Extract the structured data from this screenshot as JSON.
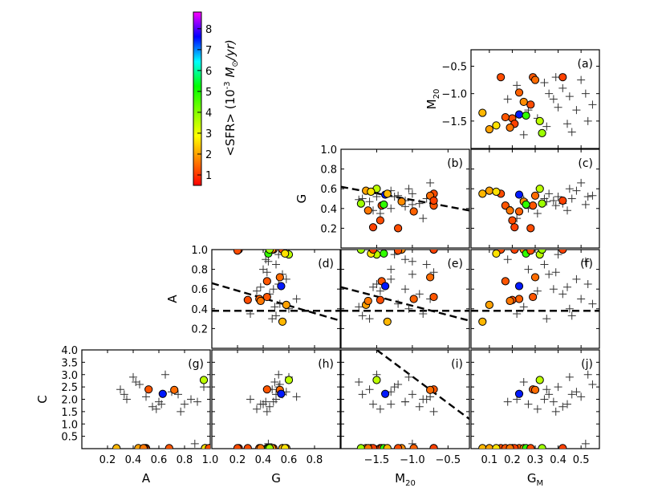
{
  "chart_data": {
    "type": "scatter",
    "title": "",
    "colorbar": {
      "label": "<SFR> (10^-3 M_sun/yr)",
      "label_main": "<SFR> (10",
      "label_exp": "-3",
      "label_unit": " M",
      "label_sub": "⊙",
      "label_tail": "/yr)",
      "range": [
        0.5,
        8.8
      ],
      "ticks": [
        "1",
        "2",
        "3",
        "4",
        "5",
        "6",
        "7",
        "8"
      ],
      "colors": [
        "#ff0000",
        "#ff8000",
        "#ffff00",
        "#80ff00",
        "#00ff00",
        "#00ffff",
        "#0000ff",
        "#ff00ff"
      ]
    },
    "variables": {
      "A": {
        "label": "A",
        "sub": "",
        "range": [
          0,
          1.0
        ],
        "ticks": [
          "0.2",
          "0.4",
          "0.6",
          "0.8",
          "1.0"
        ]
      },
      "G": {
        "label": "G",
        "sub": "",
        "range": [
          0,
          1.0
        ],
        "ticks": [
          "0.2",
          "0.4",
          "0.6",
          "0.8",
          "1.0"
        ]
      },
      "M20": {
        "label": "M",
        "sub": "20",
        "range": [
          -2.0,
          -0.2
        ],
        "ticks": [
          "−1.5",
          "−1.0",
          "−0.5"
        ]
      },
      "GM": {
        "label": "G",
        "sub": "M",
        "range": [
          0.02,
          0.58
        ],
        "ticks": [
          "0.1",
          "0.2",
          "0.3",
          "0.4",
          "0.5"
        ]
      },
      "C": {
        "label": "C",
        "sub": "",
        "range": [
          0,
          4.0
        ],
        "ticks": [
          "0.5",
          "1.0",
          "1.5",
          "2.0",
          "2.5",
          "3.0",
          "3.5",
          "4.0"
        ]
      }
    },
    "panels": [
      {
        "id": "a",
        "label": "(a)",
        "x": "GM",
        "y": "M20",
        "row": 0,
        "col": 3,
        "yticks": [
          "−1.5",
          "−1.0",
          "−0.5"
        ],
        "ylabel": "M20",
        "lines": []
      },
      {
        "id": "b",
        "label": "(b)",
        "x": "M20",
        "y": "G",
        "row": 1,
        "col": 2,
        "yticks": [
          "0.2",
          "0.4",
          "0.6",
          "0.8",
          "1.0"
        ],
        "ylabel": "G",
        "lines": [
          [
            [
              -2.0,
              0.62
            ],
            [
              -0.2,
              0.38
            ]
          ]
        ]
      },
      {
        "id": "c",
        "label": "(c)",
        "x": "GM",
        "y": "G",
        "row": 1,
        "col": 3,
        "lines": []
      },
      {
        "id": "d",
        "label": "(d)",
        "x": "G",
        "y": "A",
        "row": 2,
        "col": 1,
        "yticks": [
          "0.2",
          "0.4",
          "0.6",
          "0.8",
          "1.0"
        ],
        "ylabel": "A",
        "lines": [
          [
            [
              0,
              0.38
            ],
            [
              1.0,
              0.38
            ]
          ],
          [
            [
              0,
              0.66
            ],
            [
              1.0,
              0.28
            ]
          ]
        ]
      },
      {
        "id": "e",
        "label": "(e)",
        "x": "M20",
        "y": "A",
        "row": 2,
        "col": 2,
        "lines": [
          [
            [
              -2.0,
              0.38
            ],
            [
              -0.2,
              0.38
            ]
          ],
          [
            [
              -2.0,
              0.62
            ],
            [
              -0.2,
              0.28
            ]
          ]
        ]
      },
      {
        "id": "f",
        "label": "(f)",
        "x": "GM",
        "y": "A",
        "row": 2,
        "col": 3,
        "lines": [
          [
            [
              0.02,
              0.38
            ],
            [
              0.58,
              0.38
            ]
          ]
        ]
      },
      {
        "id": "g",
        "label": "(g)",
        "x": "A",
        "y": "C",
        "row": 3,
        "col": 0,
        "yticks": [
          "0.5",
          "1.0",
          "1.5",
          "2.0",
          "2.5",
          "3.0",
          "3.5",
          "4.0"
        ],
        "ylabel": "C",
        "xticks": [
          "0.2",
          "0.4",
          "0.6",
          "0.8",
          "1.0"
        ],
        "xlabel": "A",
        "lines": []
      },
      {
        "id": "h",
        "label": "(h)",
        "x": "G",
        "y": "C",
        "row": 3,
        "col": 1,
        "xticks": [
          "0.2",
          "0.4",
          "0.6",
          "0.8"
        ],
        "xlabel": "G",
        "lines": []
      },
      {
        "id": "i",
        "label": "(i)",
        "x": "M20",
        "y": "C",
        "row": 3,
        "col": 2,
        "xticks": [
          "−1.5",
          "−1.0",
          "−0.5"
        ],
        "xlabel": "M20",
        "lines": [
          [
            [
              -1.5,
              4.0
            ],
            [
              -0.2,
              1.2
            ]
          ]
        ]
      },
      {
        "id": "j",
        "label": "(j)",
        "x": "GM",
        "y": "C",
        "row": 3,
        "col": 3,
        "xticks": [
          "0.1",
          "0.2",
          "0.3",
          "0.4",
          "0.5"
        ],
        "xlabel": "GM",
        "lines": []
      }
    ],
    "galaxies_sfr": [
      {
        "GM": 0.15,
        "M20": -0.7,
        "G": 0.55,
        "A": 1.0,
        "C": 0.02,
        "sfr": 1.2
      },
      {
        "GM": 0.29,
        "M20": -0.7,
        "G": 0.43,
        "A": 0.52,
        "C": 2.4,
        "sfr": 1.3
      },
      {
        "GM": 0.3,
        "M20": -0.75,
        "G": 0.53,
        "A": 0.72,
        "C": 2.38,
        "sfr": 1.5
      },
      {
        "GM": 0.42,
        "M20": -0.7,
        "G": 0.48,
        "A": 1.0,
        "C": 0.02,
        "sfr": 1.1
      },
      {
        "GM": 0.23,
        "M20": -0.98,
        "G": 0.37,
        "A": 0.5,
        "C": 0.02,
        "sfr": 1.4
      },
      {
        "GM": 0.25,
        "M20": -1.15,
        "G": 0.47,
        "A": 1.0,
        "C": 0.02,
        "sfr": 1.8
      },
      {
        "GM": 0.2,
        "M20": -1.45,
        "G": 0.28,
        "A": 0.49,
        "C": 0.02,
        "sfr": 1.2
      },
      {
        "GM": 0.17,
        "M20": -1.43,
        "G": 0.43,
        "A": 0.68,
        "C": 0.02,
        "sfr": 1.3
      },
      {
        "GM": 0.23,
        "M20": -1.38,
        "G": 0.54,
        "A": 0.63,
        "C": 2.22,
        "sfr": 7.5
      },
      {
        "GM": 0.26,
        "M20": -1.4,
        "G": 0.44,
        "A": 0.96,
        "C": 0.02,
        "sfr": 4.8
      },
      {
        "GM": 0.32,
        "M20": -1.5,
        "G": 0.6,
        "A": 0.95,
        "C": 2.78,
        "sfr": 3.5
      },
      {
        "GM": 0.07,
        "M20": -1.35,
        "G": 0.55,
        "A": 0.27,
        "C": 0.02,
        "sfr": 2.2
      },
      {
        "GM": 0.1,
        "M20": -1.65,
        "G": 0.58,
        "A": 0.44,
        "C": 0.02,
        "sfr": 2.0
      },
      {
        "GM": 0.13,
        "M20": -1.58,
        "G": 0.57,
        "A": 0.96,
        "C": 0.02,
        "sfr": 2.6
      },
      {
        "GM": 0.33,
        "M20": -1.72,
        "G": 0.45,
        "A": 1.0,
        "C": 0.02,
        "sfr": 3.8
      },
      {
        "GM": 0.21,
        "M20": -1.55,
        "G": 0.21,
        "A": 1.0,
        "C": 0.02,
        "sfr": 1.1
      },
      {
        "GM": 0.19,
        "M20": -1.62,
        "G": 0.38,
        "A": 0.48,
        "C": 0.02,
        "sfr": 1.6
      },
      {
        "GM": 0.28,
        "M20": -1.2,
        "G": 0.2,
        "A": 0.99,
        "C": 0.02,
        "sfr": 1.2
      }
    ],
    "galaxies_plus": [
      {
        "GM": 0.34,
        "M20": -0.8,
        "G": 0.5,
        "A": 0.85,
        "C": 2.0
      },
      {
        "GM": 0.36,
        "M20": -1.0,
        "G": 0.55,
        "A": 0.75,
        "C": 2.2
      },
      {
        "GM": 0.38,
        "M20": -1.1,
        "G": 0.48,
        "A": 0.6,
        "C": 1.9
      },
      {
        "GM": 0.4,
        "M20": -1.25,
        "G": 0.52,
        "A": 0.95,
        "C": 2.5
      },
      {
        "GM": 0.42,
        "M20": -0.9,
        "G": 0.45,
        "A": 0.55,
        "C": 1.7
      },
      {
        "GM": 0.45,
        "M20": -1.05,
        "G": 0.6,
        "A": 0.4,
        "C": 2.9
      },
      {
        "GM": 0.48,
        "M20": -1.3,
        "G": 0.58,
        "A": 0.7,
        "C": 2.3
      },
      {
        "GM": 0.5,
        "M20": -0.75,
        "G": 0.66,
        "A": 0.5,
        "C": 2.1
      },
      {
        "GM": 0.53,
        "M20": -1.5,
        "G": 0.52,
        "A": 0.65,
        "C": 3.0
      },
      {
        "GM": 0.55,
        "M20": -1.2,
        "G": 0.53,
        "A": 0.45,
        "C": 2.6
      },
      {
        "GM": 0.27,
        "M20": -1.3,
        "G": 0.4,
        "A": 0.8,
        "C": 1.8
      },
      {
        "GM": 0.31,
        "M20": -1.45,
        "G": 0.35,
        "A": 0.58,
        "C": 1.6
      },
      {
        "GM": 0.22,
        "M20": -0.85,
        "G": 0.3,
        "A": 0.35,
        "C": 2.0
      },
      {
        "GM": 0.18,
        "M20": -1.1,
        "G": 0.42,
        "A": 0.9,
        "C": 1.9
      },
      {
        "GM": 0.35,
        "M20": -1.6,
        "G": 0.47,
        "A": 0.3,
        "C": 2.4
      },
      {
        "GM": 0.44,
        "M20": -1.55,
        "G": 0.38,
        "A": 0.62,
        "C": 1.8
      },
      {
        "GM": 0.52,
        "M20": -1.0,
        "G": 0.44,
        "A": 0.88,
        "C": 0.2
      },
      {
        "GM": 0.46,
        "M20": -1.7,
        "G": 0.5,
        "A": 0.33,
        "C": 2.2
      },
      {
        "GM": 0.39,
        "M20": -0.7,
        "G": 0.43,
        "A": 0.77,
        "C": 1.5
      },
      {
        "GM": 0.25,
        "M20": -1.75,
        "G": 0.49,
        "A": 0.42,
        "C": 2.7
      }
    ]
  }
}
